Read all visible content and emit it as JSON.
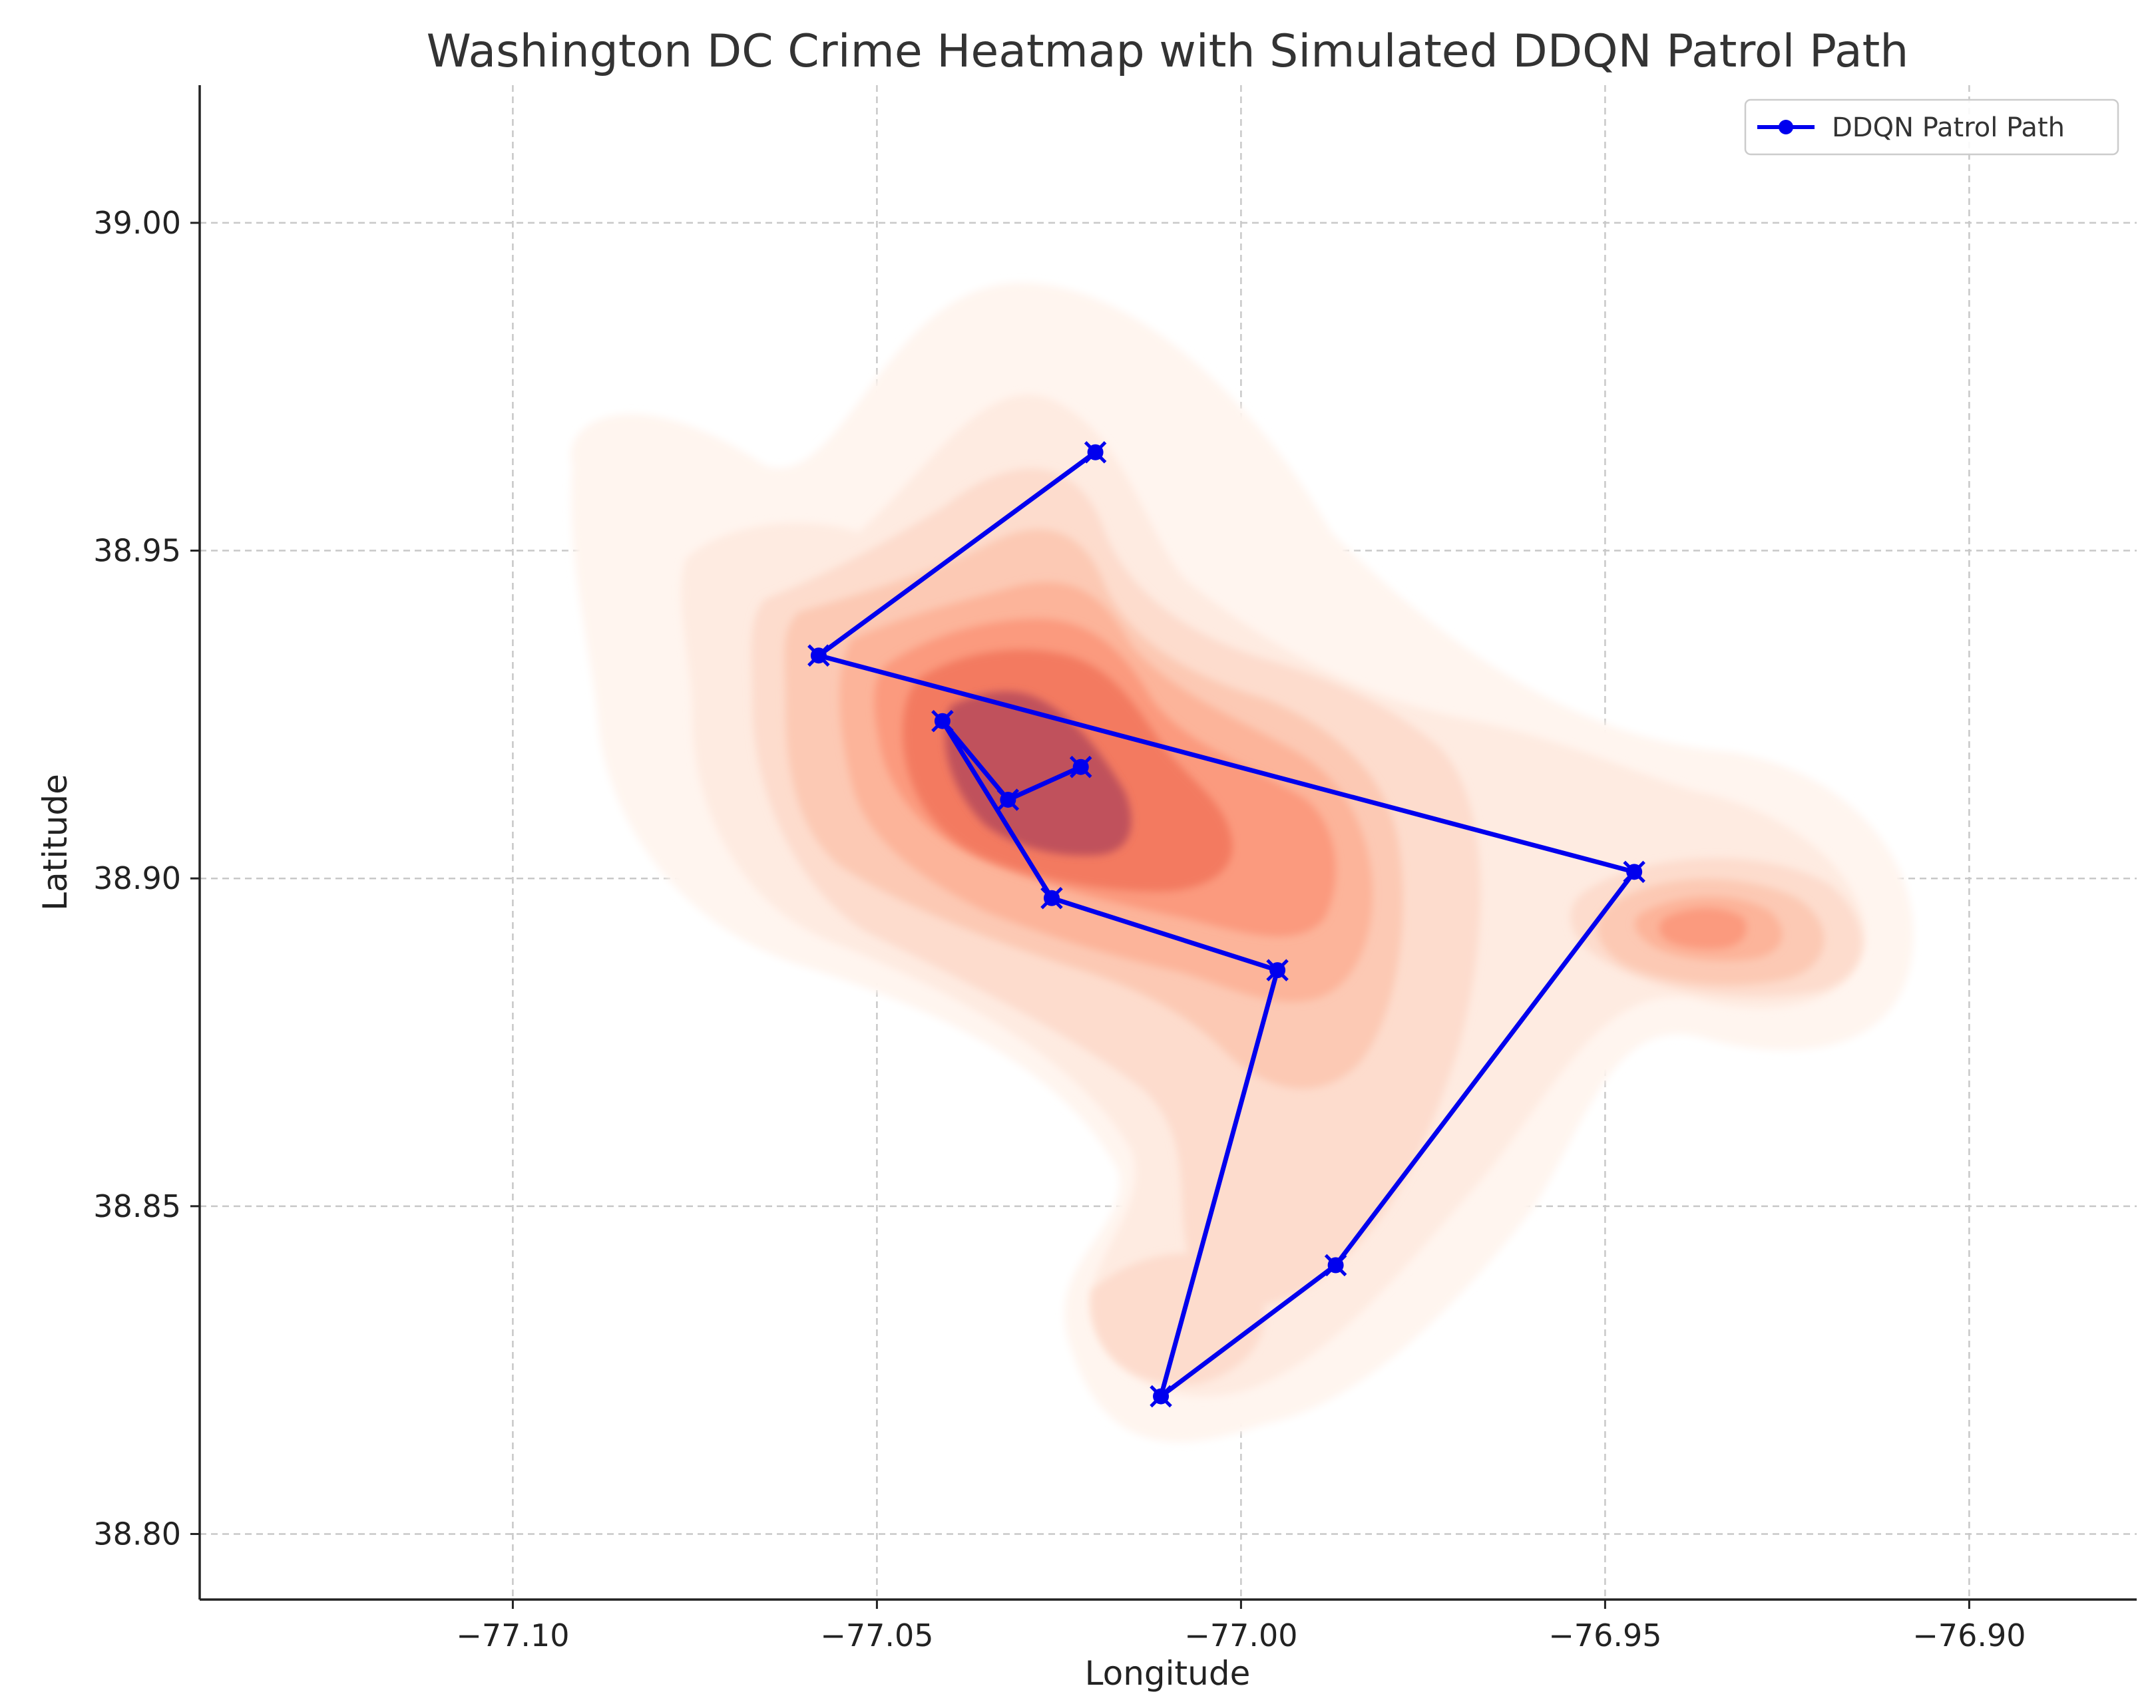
{
  "chart_data": {
    "type": "line",
    "title": "Washington DC Crime Heatmap with Simulated DDQN Patrol Path",
    "xlabel": "Longitude",
    "ylabel": "Latitude",
    "xlim": [
      -77.143,
      -76.877
    ],
    "ylim": [
      38.79,
      39.021
    ],
    "x_ticks": [
      -77.1,
      -77.05,
      -77.0,
      -76.95,
      -76.9
    ],
    "x_tick_labels": [
      "−77.10",
      "−77.05",
      "−77.00",
      "−76.95",
      "−76.90"
    ],
    "y_ticks": [
      38.8,
      38.85,
      38.9,
      38.95,
      39.0
    ],
    "y_tick_labels": [
      "38.80",
      "38.85",
      "38.90",
      "38.95",
      "39.00"
    ],
    "grid": true,
    "legend": {
      "position": "top-right",
      "entries": [
        "DDQN Patrol Path"
      ]
    },
    "series": [
      {
        "name": "DDQN Patrol Path",
        "color": "#0000ee",
        "marker": "circle-x",
        "x": [
          -77.02,
          -77.058,
          -76.946,
          -76.987,
          -77.011,
          -76.995,
          -77.026,
          -77.041,
          -77.032,
          -77.022
        ],
        "y": [
          38.965,
          38.934,
          38.901,
          38.841,
          38.821,
          38.886,
          38.897,
          38.924,
          38.912,
          38.917
        ]
      }
    ],
    "heatmap": {
      "colormap": "Reds",
      "levels": [
        "#fff5ef",
        "#feebe1",
        "#fddccd",
        "#fcc9b4",
        "#fcb49a",
        "#fb9a7e",
        "#f37a61",
        "#c0515b"
      ],
      "hotspots": [
        {
          "x": -77.03,
          "y": 38.915,
          "intensity": "highest"
        },
        {
          "x": -76.937,
          "y": 38.893,
          "intensity": "medium"
        },
        {
          "x": -77.003,
          "y": 38.826,
          "intensity": "low"
        }
      ]
    }
  }
}
